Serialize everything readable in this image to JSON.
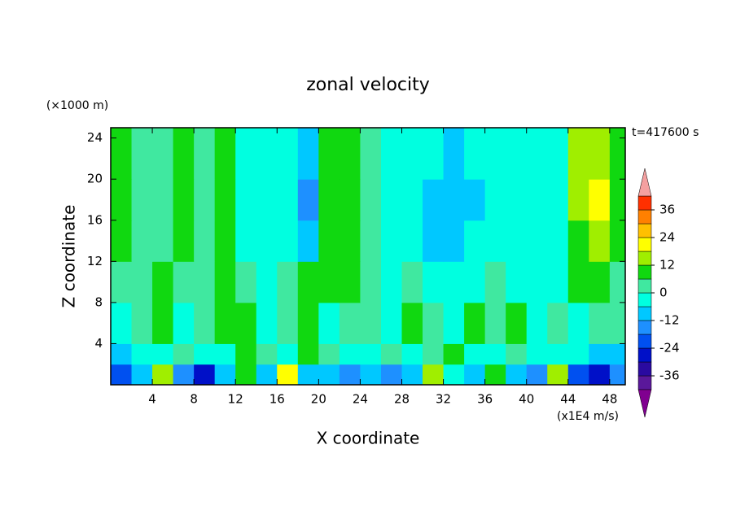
{
  "chart_data": {
    "type": "contour",
    "title": "zonal velocity",
    "y_unit_label": "(×1000 m)",
    "time_label": "t=417600 s",
    "x_unit_label": "(x1E4 m/s)",
    "xlabel": "X coordinate",
    "ylabel": "Z coordinate",
    "xlim": [
      0,
      49.5
    ],
    "ylim": [
      0,
      25
    ],
    "xticks": [
      4,
      8,
      12,
      16,
      20,
      24,
      28,
      32,
      36,
      40,
      44,
      48
    ],
    "yticks": [
      4,
      8,
      12,
      16,
      20,
      24
    ],
    "x_edges": [
      0,
      2,
      4,
      6,
      8,
      10,
      12,
      14,
      16,
      18,
      20,
      22,
      24,
      26,
      28,
      30,
      32,
      34,
      36,
      38,
      40,
      42,
      44,
      46,
      48,
      49.5
    ],
    "z_edges": [
      0,
      2,
      4,
      8,
      12,
      16,
      20,
      25
    ],
    "values": [
      [
        -20,
        -8,
        14,
        -15,
        -25,
        -10,
        8,
        -12,
        20,
        -10,
        -8,
        -15,
        -9,
        -18,
        -10,
        14,
        -6,
        -12,
        10,
        -9,
        -16,
        15,
        -22,
        -28,
        -14
      ],
      [
        -8,
        -4,
        -2,
        3,
        -6,
        -3,
        6,
        2,
        -4,
        9,
        2,
        -2,
        -6,
        4,
        -3,
        2,
        8,
        -4,
        -2,
        3,
        -3,
        -6,
        -2,
        -10,
        -8
      ],
      [
        -4,
        2,
        8,
        -2,
        2,
        6,
        9,
        -3,
        4,
        10,
        -2,
        2,
        4,
        -5,
        8,
        3,
        -2,
        10,
        2,
        8,
        -6,
        3,
        -2,
        4,
        2
      ],
      [
        4,
        2,
        6,
        4,
        3,
        8,
        2,
        -3,
        4,
        7,
        10,
        8,
        4,
        -4,
        3,
        -2,
        -5,
        -3,
        2,
        -3,
        -4,
        -2,
        6,
        10,
        4
      ],
      [
        9,
        2,
        3,
        8,
        3,
        7,
        -5,
        -4,
        -6,
        -9,
        10,
        8,
        3,
        -3,
        -4,
        -7,
        -8,
        -6,
        -5,
        -3,
        -4,
        -2,
        11,
        15,
        6
      ],
      [
        9,
        3,
        2,
        9,
        3,
        8,
        -4,
        -5,
        -6,
        -14,
        11,
        8,
        2,
        -3,
        -5,
        -7,
        -9,
        -7,
        -5,
        -3,
        -4,
        -2,
        12,
        19,
        7
      ],
      [
        9,
        2,
        3,
        8,
        2,
        9,
        -3,
        -4,
        -5,
        -9,
        11,
        7,
        3,
        -4,
        -4,
        -6,
        -8,
        -6,
        -5,
        -4,
        -3,
        -1,
        12,
        14,
        8
      ]
    ],
    "levels": [
      -42,
      -36,
      -30,
      -24,
      -18,
      -12,
      -6,
      0,
      6,
      12,
      18,
      24,
      30,
      36,
      42
    ],
    "colors": [
      "#5a189a",
      "#2a0aa0",
      "#0010c8",
      "#0050f0",
      "#1e90ff",
      "#00c8ff",
      "#00ffe0",
      "#40e8a0",
      "#10d810",
      "#a0ee00",
      "#ffff00",
      "#ffc000",
      "#ff8000",
      "#ff3000"
    ],
    "under_color": "#800090",
    "over_color": "#f4a0a0",
    "cticks": [
      -36,
      -24,
      -12,
      0,
      12,
      24,
      36
    ]
  }
}
